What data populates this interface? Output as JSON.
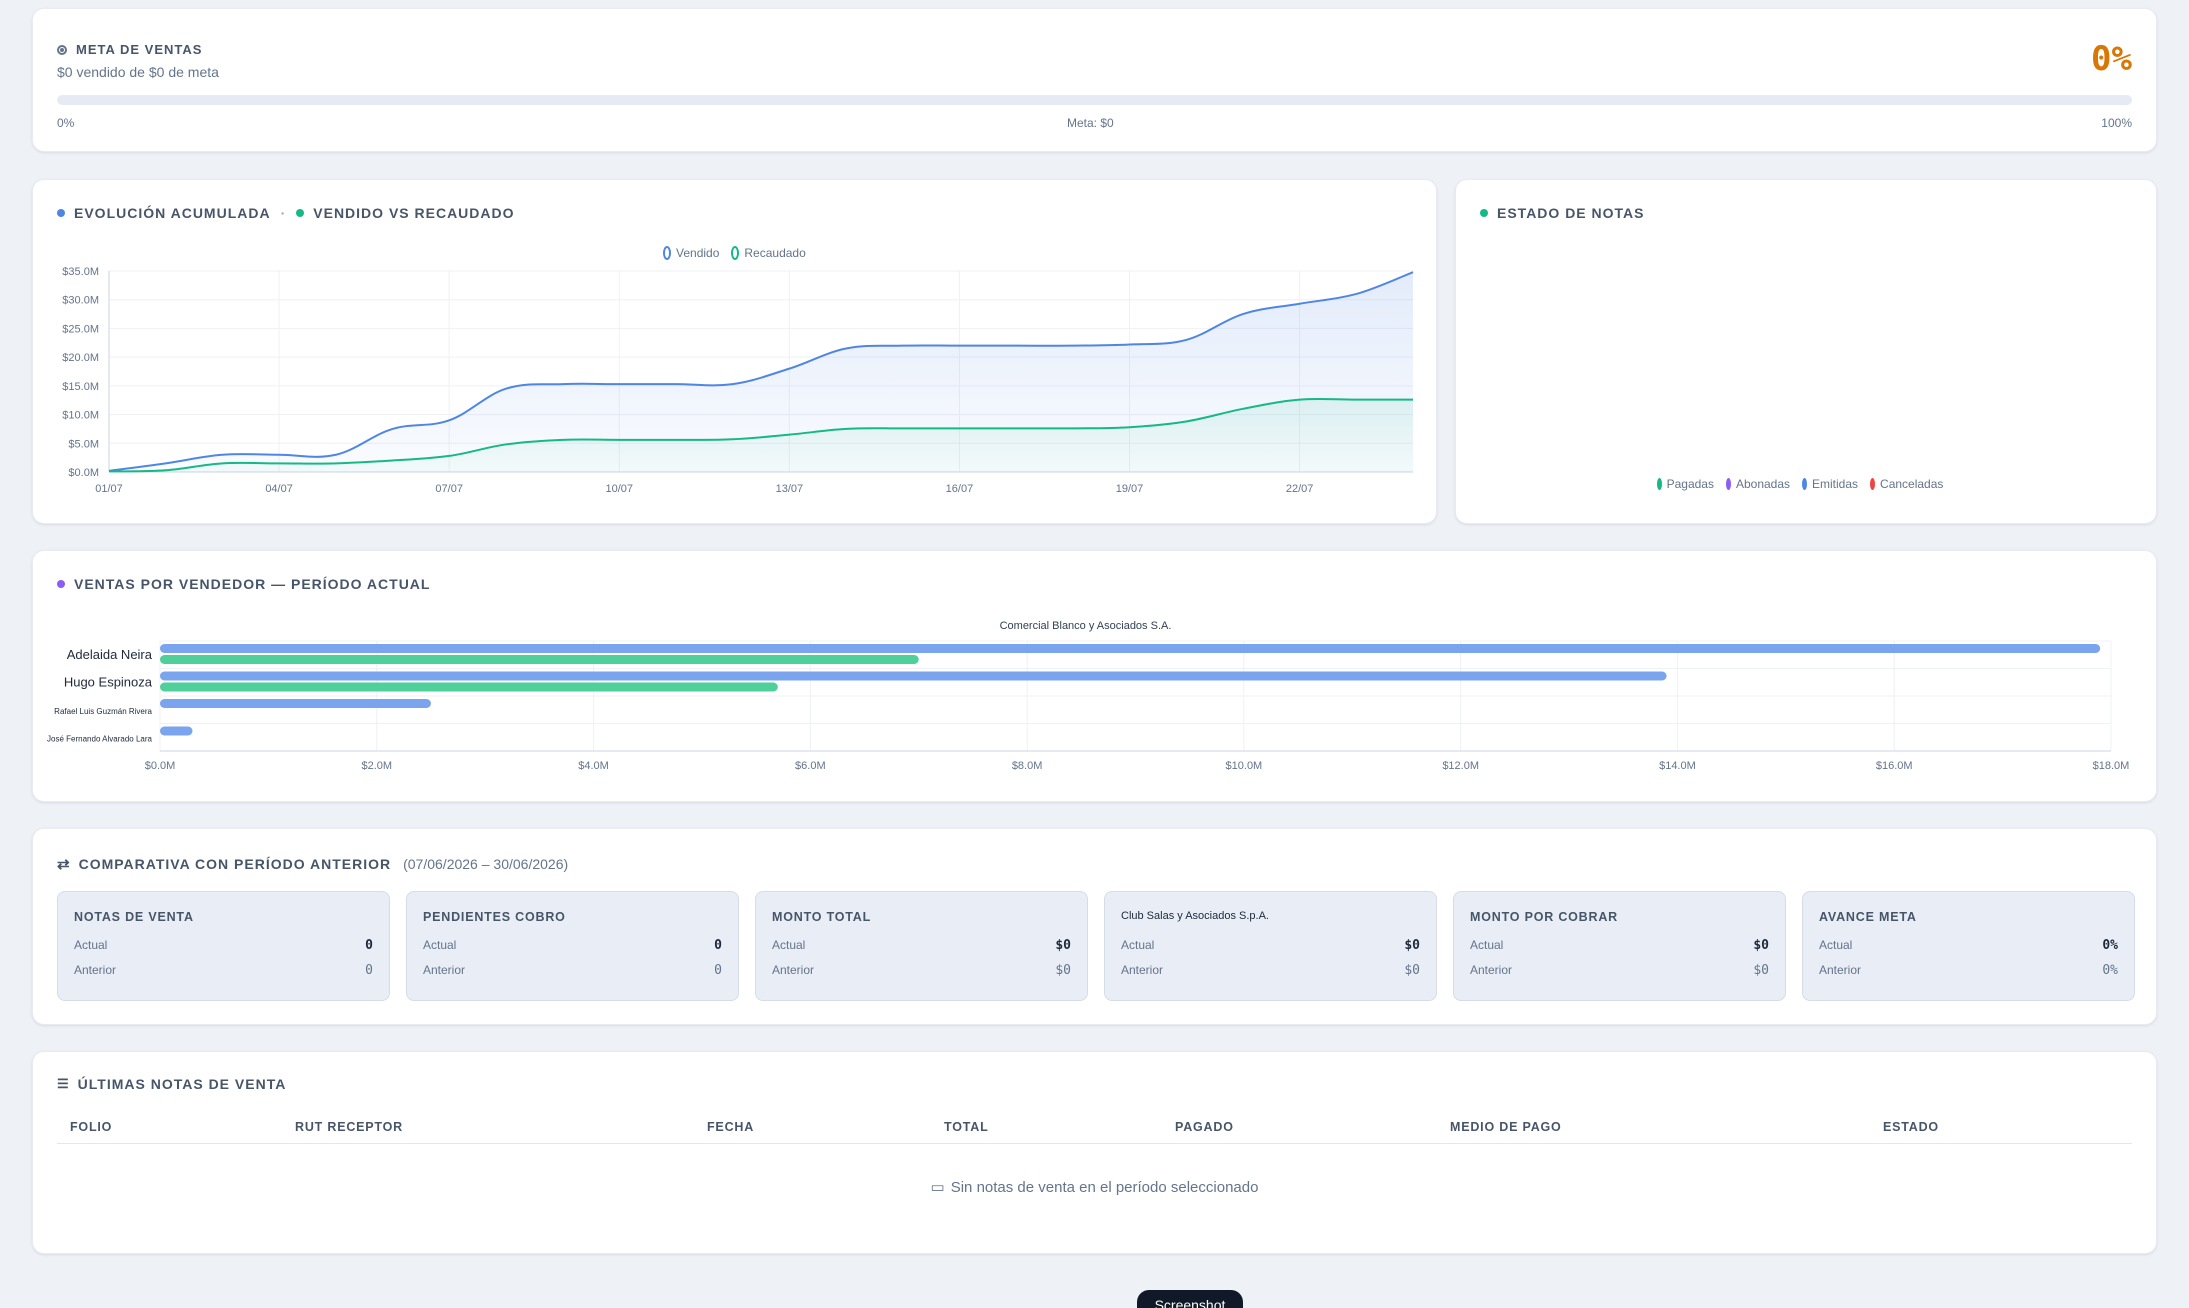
{
  "meta": {
    "title": "META DE VENTAS",
    "subtitle": "$0 vendido de $0 de meta",
    "percent": "0%",
    "progress_fraction": 0,
    "scale_start": "0%",
    "scale_mid": "Meta: $0",
    "scale_end": "100%"
  },
  "evolucion": {
    "title_a": "EVOLUCIÓN ACUMULADA",
    "separator": "·",
    "title_b": "VENDIDO VS RECAUDADO",
    "chart_data": {
      "type": "area",
      "x": [
        "01/07",
        "02/07",
        "03/07",
        "04/07",
        "05/07",
        "06/07",
        "07/07",
        "08/07",
        "09/07",
        "10/07",
        "11/07",
        "12/07",
        "13/07",
        "14/07",
        "15/07",
        "16/07",
        "17/07",
        "18/07",
        "19/07",
        "20/07",
        "21/07",
        "22/07",
        "23/07",
        "24/07"
      ],
      "x_tick_labels": [
        "01/07",
        "04/07",
        "07/07",
        "10/07",
        "13/07",
        "16/07",
        "19/07",
        "22/07"
      ],
      "y_tick_labels": [
        "$0.0M",
        "$5.0M",
        "$10.0M",
        "$15.0M",
        "$20.0M",
        "$25.0M",
        "$30.0M",
        "$35.0M"
      ],
      "ylim": [
        0,
        35
      ],
      "series": [
        {
          "name": "Vendido",
          "color": "#4f86e4",
          "values": [
            0.2,
            1.5,
            3.0,
            3.0,
            3.0,
            7.5,
            9.0,
            14.5,
            15.3,
            15.3,
            15.3,
            15.3,
            18.0,
            21.5,
            22.0,
            22.0,
            22.0,
            22.0,
            22.2,
            23.0,
            27.5,
            29.3,
            31.0,
            34.8
          ]
        },
        {
          "name": "Recaudado",
          "color": "#16b886",
          "values": [
            0.1,
            0.3,
            1.5,
            1.5,
            1.5,
            2.0,
            2.8,
            4.8,
            5.6,
            5.6,
            5.6,
            5.7,
            6.5,
            7.5,
            7.6,
            7.6,
            7.6,
            7.6,
            7.8,
            8.8,
            11.0,
            12.6,
            12.6,
            12.6
          ]
        }
      ],
      "grid": true,
      "legend_position": "top-center"
    }
  },
  "estado": {
    "title": "ESTADO DE NOTAS",
    "legend": [
      {
        "label": "Pagadas",
        "color": "#16b886"
      },
      {
        "label": "Abonadas",
        "color": "#8b5cf6"
      },
      {
        "label": "Emitidas",
        "color": "#4f86e4"
      },
      {
        "label": "Canceladas",
        "color": "#ef4444"
      }
    ]
  },
  "vendedor": {
    "title": "VENTAS POR VENDEDOR — PERÍODO ACTUAL",
    "chart_data": {
      "type": "bar",
      "orientation": "horizontal",
      "title": "Comercial Blanco y Asociados S.A.",
      "categories": [
        "Adelaida Neira",
        "Hugo Espinoza",
        "Rafael Luis Guzmán Rivera",
        "José Fernando Alvarado Lara"
      ],
      "series": [
        {
          "color": "#7aa5ee",
          "values": [
            17.9,
            13.9,
            2.5,
            0.3
          ]
        },
        {
          "color": "#4fcf99",
          "values": [
            7.0,
            5.7,
            0,
            0
          ]
        }
      ],
      "xlim": [
        0,
        18
      ],
      "x_tick_labels": [
        "$0.0M",
        "$2.0M",
        "$4.0M",
        "$6.0M",
        "$8.0M",
        "$10.0M",
        "$12.0M",
        "$14.0M",
        "$16.0M",
        "$18.0M"
      ],
      "grid": true
    }
  },
  "comparativa": {
    "title": "COMPARATIVA CON PERÍODO ANTERIOR",
    "range": "(07/06/2026 – 30/06/2026)",
    "actual_label": "Actual",
    "anterior_label": "Anterior",
    "boxes": [
      {
        "title": "NOTAS DE VENTA",
        "actual": "0",
        "anterior": "0"
      },
      {
        "title": "PENDIENTES COBRO",
        "actual": "0",
        "anterior": "0"
      },
      {
        "title": "MONTO TOTAL",
        "actual": "$0",
        "anterior": "$0"
      },
      {
        "title": "Club Salas y Asociados S.p.A.",
        "actual": "$0",
        "anterior": "$0"
      },
      {
        "title": "MONTO POR COBRAR",
        "actual": "$0",
        "anterior": "$0"
      },
      {
        "title": "AVANCE META",
        "actual": "0%",
        "anterior": "0%"
      }
    ]
  },
  "ultimas": {
    "title": "ÚLTIMAS NOTAS DE VENTA",
    "columns": [
      "FOLIO",
      "RUT RECEPTOR",
      "FECHA",
      "TOTAL",
      "PAGADO",
      "MEDIO DE PAGO",
      "ESTADO"
    ],
    "empty": "Sin notas de venta en el período seleccionado"
  },
  "overlay": {
    "label": "Screenshot"
  },
  "colors": {
    "accent_orange": "#d97706",
    "blue": "#4f86e4",
    "green": "#16b886",
    "purple": "#8b5cf6"
  }
}
